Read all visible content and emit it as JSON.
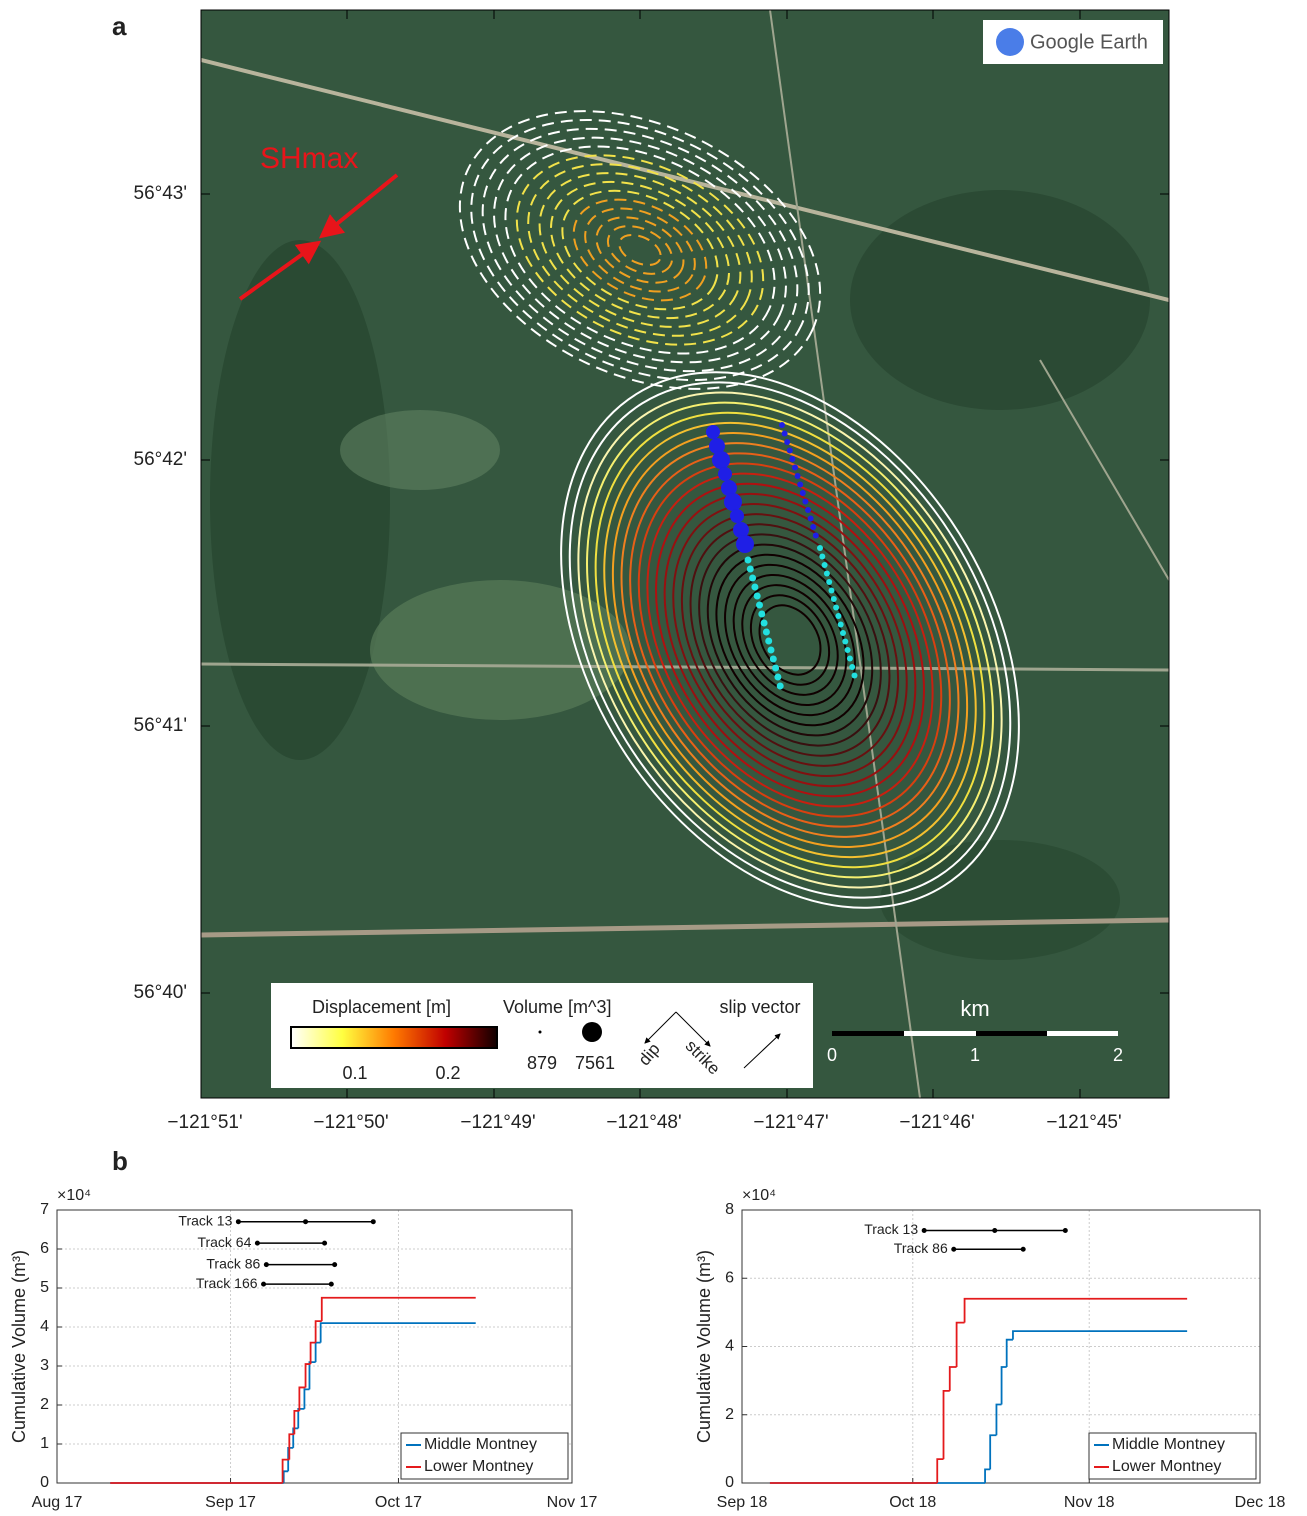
{
  "panel_a": {
    "label": "a",
    "watermark": "Google Earth",
    "stress_label": "SHmax",
    "lat_ticks": [
      "56°43'",
      "56°42'",
      "56°41'",
      "56°40'"
    ],
    "lon_ticks": [
      "−121°51'",
      "−121°50'",
      "−121°49'",
      "−121°48'",
      "−121°47'",
      "−121°46'",
      "−121°45'"
    ],
    "legend": {
      "displacement_title": "Displacement [m]",
      "colorbar_ticks": [
        0.1,
        0.2
      ],
      "volume_title": "Volume [m^3]",
      "volume_values": [
        879,
        7561
      ],
      "dip": "dip",
      "strike": "strike",
      "slip_vector": "slip vector"
    },
    "scale_title": "km",
    "scale_ticks": [
      0,
      1,
      2
    ]
  },
  "panel_b_label": "b",
  "chart_data": [
    {
      "type": "line",
      "step": true,
      "ylabel": "Cumulative Volume (m³)",
      "y_exponent": "×10⁴",
      "xlim": [
        0,
        92
      ],
      "xticks": [
        {
          "value": 0,
          "label": "Aug 17"
        },
        {
          "value": 31,
          "label": "Sep 17"
        },
        {
          "value": 61,
          "label": "Oct 17"
        },
        {
          "value": 92,
          "label": "Nov 17"
        }
      ],
      "ylim": [
        0,
        7
      ],
      "yticks": [
        0,
        1,
        2,
        3,
        4,
        5,
        6,
        7
      ],
      "grid": true,
      "legend_position": "lower right",
      "series": [
        {
          "name": "Middle Montney",
          "color": "#0072bd",
          "x": [
            9.5,
            40.5,
            41.3,
            42.2,
            43.1,
            44.2,
            45.1,
            46.2,
            47.1,
            74.8
          ],
          "values": [
            0,
            0.3,
            0.9,
            1.4,
            1.9,
            2.4,
            3.1,
            3.6,
            4.1,
            4.1
          ]
        },
        {
          "name": "Lower Montney",
          "color": "#e41a1c",
          "x": [
            9.5,
            40.3,
            41.5,
            42.4,
            43.3,
            44.4,
            45.3,
            46.2,
            47.3,
            74.8
          ],
          "values": [
            0,
            0.6,
            1.25,
            1.85,
            2.45,
            3.05,
            3.6,
            4.15,
            4.75,
            4.75
          ]
        }
      ],
      "tracks": [
        {
          "name": "Track 13",
          "x": [
            32.4,
            44.4,
            56.5
          ],
          "y": 6.7
        },
        {
          "name": "Track 64",
          "x": [
            35.8,
            47.8
          ],
          "y": 6.15
        },
        {
          "name": "Track 86",
          "x": [
            37.4,
            49.6
          ],
          "y": 5.6
        },
        {
          "name": "Track 166",
          "x": [
            36.9,
            49.0
          ],
          "y": 5.1
        }
      ]
    },
    {
      "type": "line",
      "step": true,
      "ylabel": "Cumulative Volume (m³)",
      "y_exponent": "×10⁴",
      "xlim": [
        0,
        91
      ],
      "xticks": [
        {
          "value": 0,
          "label": "Sep 18"
        },
        {
          "value": 30,
          "label": "Oct 18"
        },
        {
          "value": 61,
          "label": "Nov 18"
        },
        {
          "value": 91,
          "label": "Dec 18"
        }
      ],
      "ylim": [
        0,
        8
      ],
      "yticks": [
        0,
        2,
        4,
        6,
        8
      ],
      "grid": true,
      "legend_position": "lower right",
      "series": [
        {
          "name": "Middle Montney",
          "color": "#0072bd",
          "x": [
            4.9,
            42.7,
            43.6,
            44.7,
            45.6,
            46.5,
            47.6,
            78.2
          ],
          "values": [
            0,
            0.4,
            1.4,
            2.3,
            3.4,
            4.2,
            4.45,
            4.45
          ]
        },
        {
          "name": "Lower Montney",
          "color": "#e41a1c",
          "x": [
            4.9,
            34.3,
            35.4,
            36.5,
            37.7,
            39.1,
            78.2
          ],
          "values": [
            0,
            0.7,
            2.7,
            3.4,
            4.7,
            5.4,
            5.4
          ]
        }
      ],
      "tracks": [
        {
          "name": "Track 13",
          "x": [
            32.0,
            44.4,
            56.8
          ],
          "y": 7.4
        },
        {
          "name": "Track 86",
          "x": [
            37.2,
            49.4
          ],
          "y": 6.85
        }
      ]
    }
  ]
}
